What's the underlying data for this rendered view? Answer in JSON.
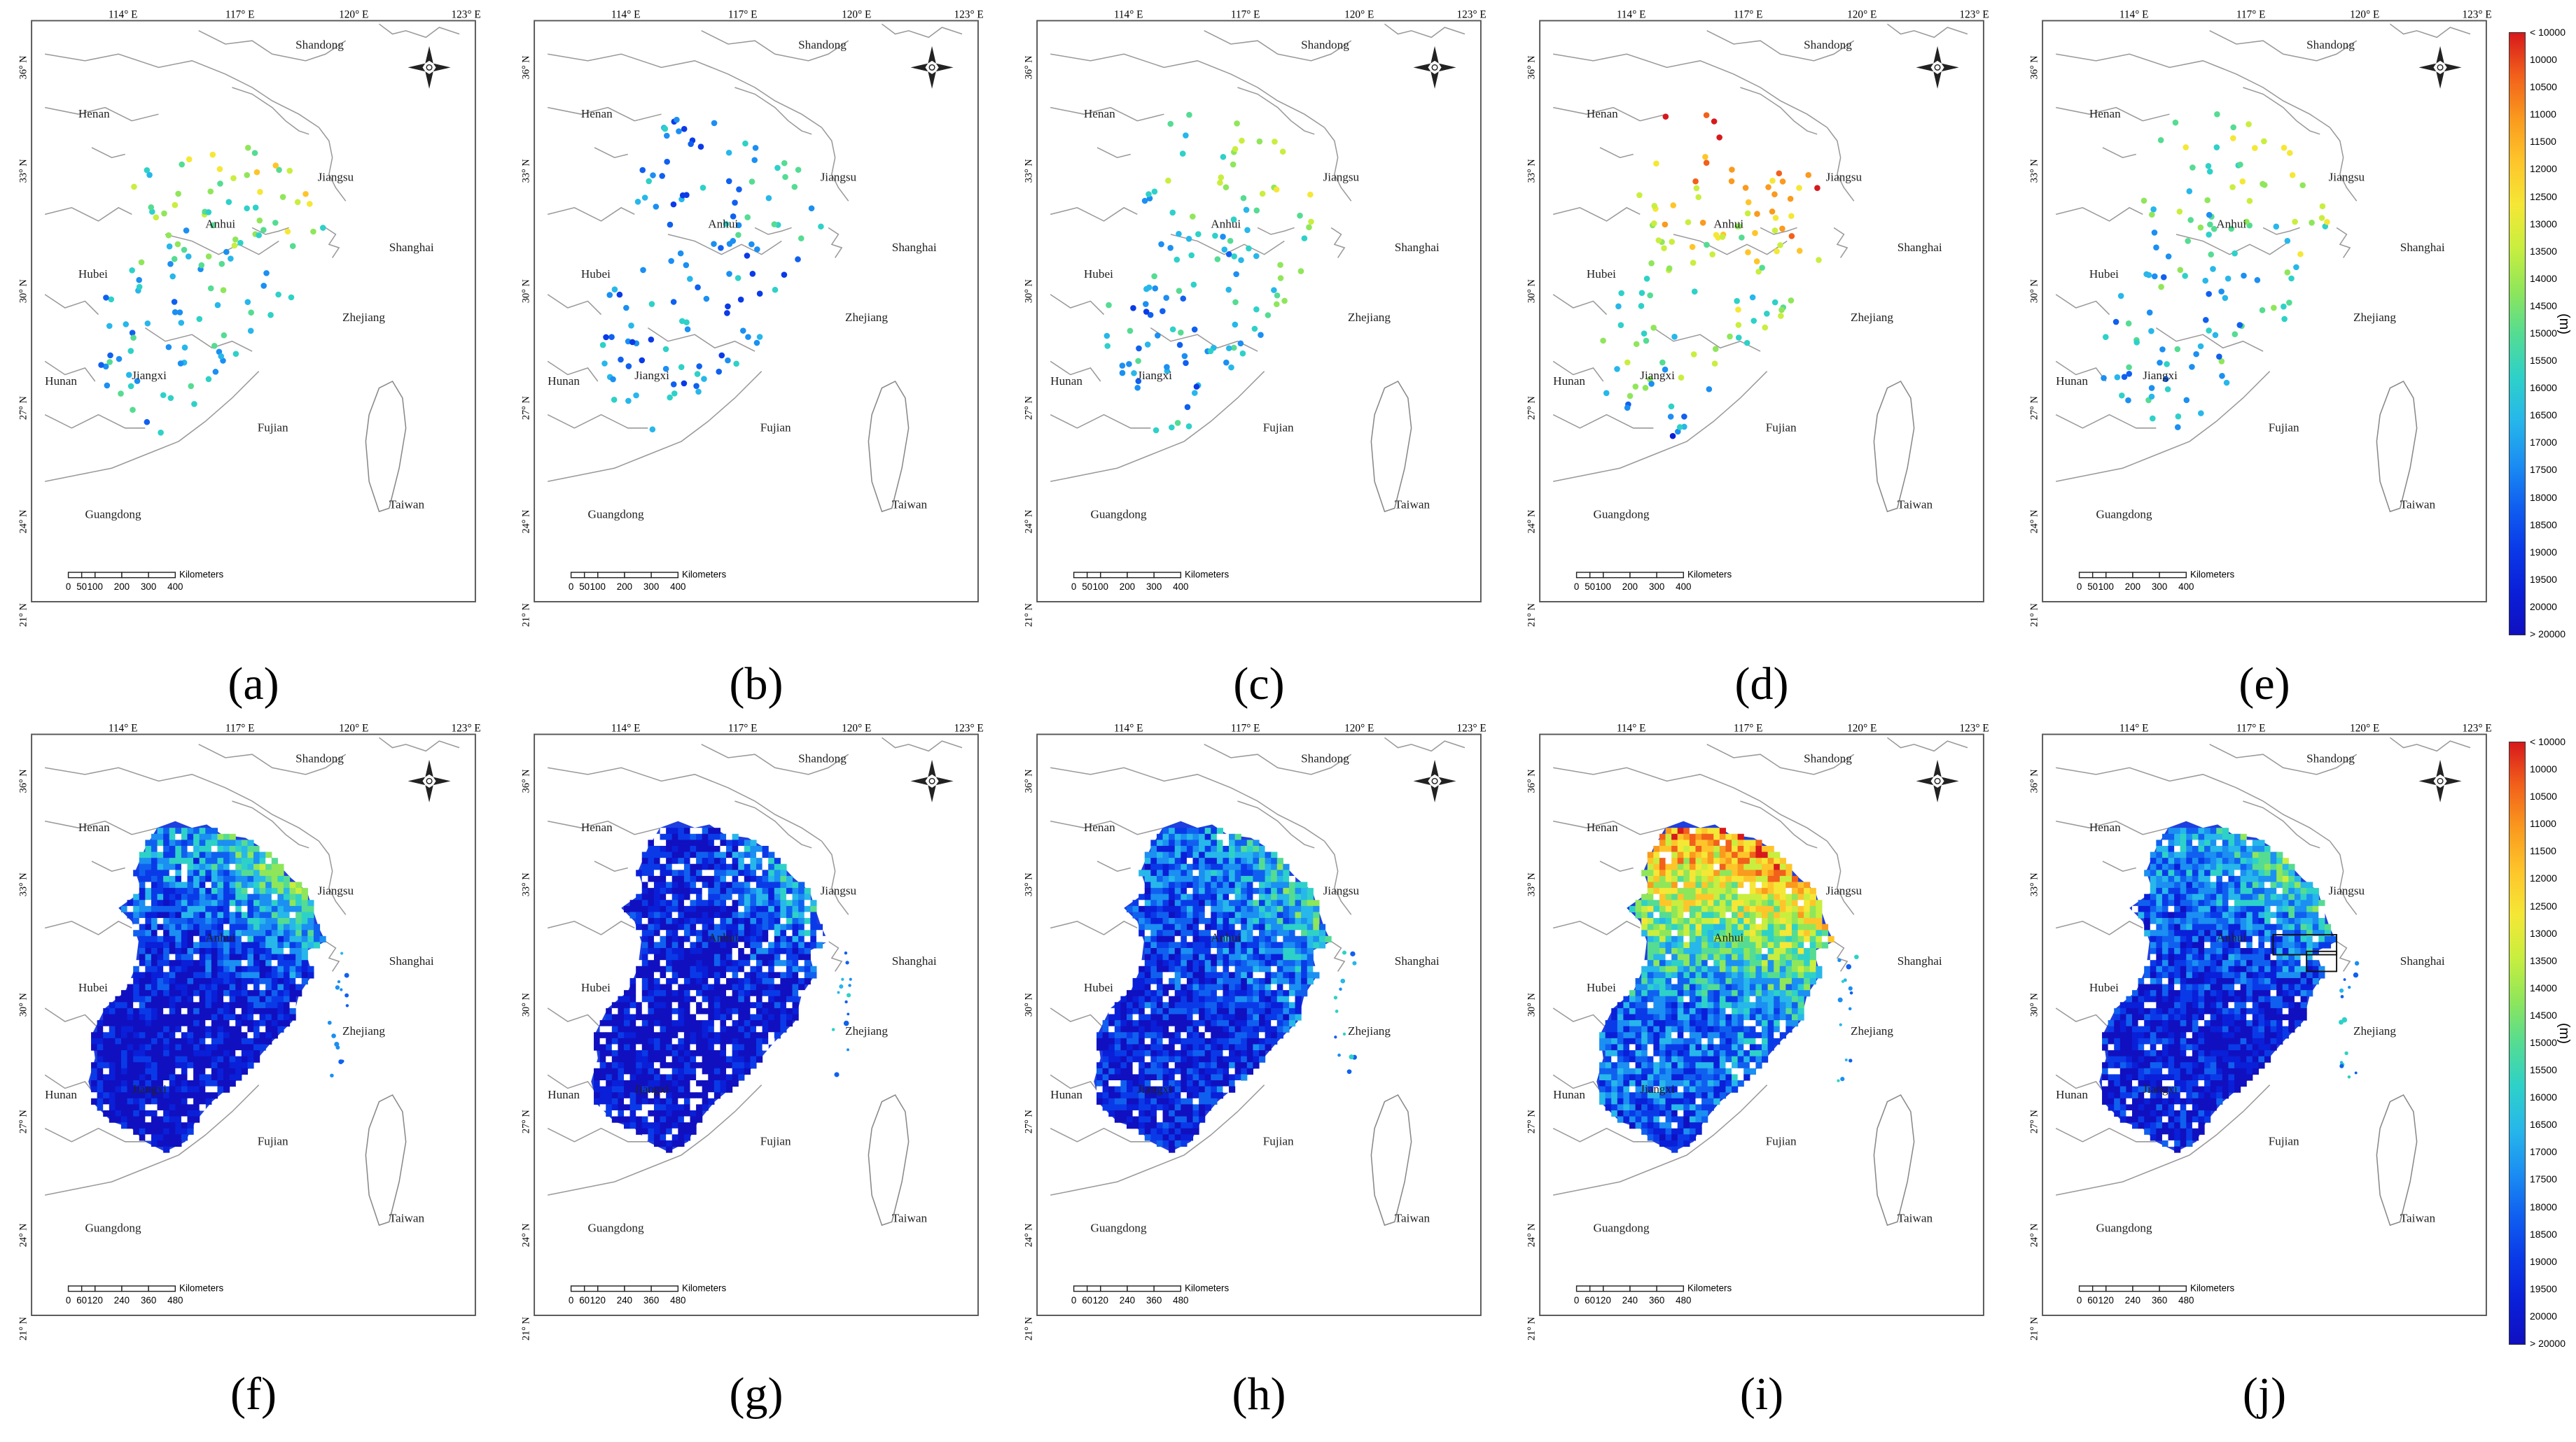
{
  "map_labels": {
    "provinces": [
      "Shandong",
      "Henan",
      "Jiangsu",
      "Anhui",
      "Shanghai",
      "Hubei",
      "Zhejiang",
      "Hunan",
      "Jiangxi",
      "Fujian",
      "Guangdong",
      "Taiwan"
    ],
    "lon_ticks": [
      "114°  E",
      "117°  E",
      "120°  E",
      "123°  E"
    ],
    "lat_ticks": [
      "36° N",
      "33° N",
      "30° N",
      "27° N",
      "24° N",
      "21° N"
    ],
    "scale_title": "Kilometers"
  },
  "scale_bars": {
    "station": [
      "0",
      "50",
      "100",
      "200",
      "300",
      "400"
    ],
    "raster": [
      "0",
      "60",
      "120",
      "240",
      "360",
      "480"
    ]
  },
  "panels": [
    {
      "id": "a",
      "letter": "(a)",
      "type": "station",
      "scheme": "mixed_a"
    },
    {
      "id": "b",
      "letter": "(b)",
      "type": "station",
      "scheme": "mixed_b"
    },
    {
      "id": "c",
      "letter": "(c)",
      "type": "station",
      "scheme": "mixed_c"
    },
    {
      "id": "d",
      "letter": "(d)",
      "type": "station",
      "scheme": "warm"
    },
    {
      "id": "e",
      "letter": "(e)",
      "type": "station",
      "scheme": "mixed_e"
    },
    {
      "id": "f",
      "letter": "(f)",
      "type": "raster",
      "scheme": "raster_f"
    },
    {
      "id": "g",
      "letter": "(g)",
      "type": "raster",
      "scheme": "raster_g"
    },
    {
      "id": "h",
      "letter": "(h)",
      "type": "raster",
      "scheme": "raster_h"
    },
    {
      "id": "i",
      "letter": "(i)",
      "type": "raster",
      "scheme": "raster_i"
    },
    {
      "id": "j",
      "letter": "(j)",
      "type": "raster",
      "scheme": "raster_j"
    }
  ],
  "legend": {
    "unit": "(m)",
    "ticks": [
      "< 10000",
      "10000",
      "10500",
      "11000",
      "11500",
      "12000",
      "12500",
      "13000",
      "13500",
      "14000",
      "14500",
      "15000",
      "15500",
      "16000",
      "16500",
      "17000",
      "17500",
      "18000",
      "18500",
      "19000",
      "19500",
      "20000",
      "> 20000"
    ],
    "colors": [
      "#d7191c",
      "#f2601b",
      "#fa9a1e",
      "#fec52b",
      "#f5e736",
      "#c9ee3f",
      "#8fe65a",
      "#55dc92",
      "#2ed1c8",
      "#27b7ea",
      "#1b8ff2",
      "#1060f0",
      "#0a3ae8",
      "#0a1fd8",
      "#1010c0"
    ]
  }
}
